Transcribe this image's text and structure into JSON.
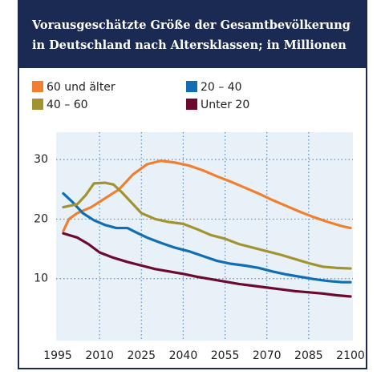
{
  "chart_data": {
    "type": "line",
    "title": [
      "Vorausgeschätzte Größe der Gesamtbevölkerung",
      "in Deutschland nach Altersklassen; in Millionen"
    ],
    "xlim": [
      1995,
      2100
    ],
    "xticks": [
      1995,
      2010,
      2025,
      2040,
      2055,
      2070,
      2085,
      2100
    ],
    "ylim": [
      0,
      35
    ],
    "yticks": [
      10,
      20,
      30
    ],
    "grid": true,
    "series": [
      {
        "name": "60 und älter",
        "color": "#f07f2f",
        "x": [
          1997,
          1999,
          2002,
          2007,
          2012,
          2017,
          2022,
          2027,
          2032,
          2037,
          2042,
          2047,
          2052,
          2057,
          2062,
          2067,
          2072,
          2077,
          2082,
          2087,
          2092,
          2097,
          2100
        ],
        "values": [
          18,
          20,
          21,
          22,
          23.5,
          25,
          27.5,
          29.2,
          29.8,
          29.5,
          29,
          28.2,
          27.2,
          26.3,
          25.3,
          24.3,
          23.2,
          22.2,
          21.2,
          20.3,
          19.5,
          18.8,
          18.5
        ]
      },
      {
        "name": "20 – 40",
        "color": "#0f6eb4",
        "x": [
          1997,
          2000,
          2004,
          2008,
          2012,
          2016,
          2020,
          2023,
          2027,
          2032,
          2037,
          2042,
          2047,
          2052,
          2057,
          2062,
          2067,
          2072,
          2077,
          2082,
          2087,
          2092,
          2097,
          2100
        ],
        "values": [
          24.3,
          23,
          21,
          19.8,
          19,
          18.5,
          18.5,
          17.8,
          16.9,
          16,
          15.2,
          14.6,
          13.8,
          13,
          12.5,
          12.2,
          11.8,
          11.2,
          10.7,
          10.3,
          9.9,
          9.6,
          9.4,
          9.4
        ]
      },
      {
        "name": "40 – 60",
        "color": "#a39330",
        "x": [
          1997,
          2002,
          2005,
          2008,
          2012,
          2015,
          2018,
          2022,
          2025,
          2030,
          2035,
          2040,
          2045,
          2050,
          2055,
          2060,
          2065,
          2070,
          2075,
          2080,
          2085,
          2090,
          2095,
          2100
        ],
        "values": [
          22,
          22.5,
          24,
          26,
          26.1,
          25.8,
          24.5,
          22.5,
          21,
          20,
          19.5,
          19.2,
          18.3,
          17.3,
          16.7,
          15.8,
          15.2,
          14.6,
          14,
          13.3,
          12.6,
          12,
          11.8,
          11.7
        ]
      },
      {
        "name": "Unter 20",
        "color": "#6b0a2e",
        "x": [
          1997,
          2002,
          2006,
          2010,
          2015,
          2020,
          2025,
          2030,
          2035,
          2040,
          2045,
          2050,
          2055,
          2060,
          2065,
          2070,
          2075,
          2080,
          2085,
          2090,
          2095,
          2100
        ],
        "values": [
          17.6,
          16.9,
          15.8,
          14.4,
          13.5,
          12.8,
          12.2,
          11.6,
          11.2,
          10.8,
          10.3,
          9.9,
          9.5,
          9.1,
          8.8,
          8.5,
          8.2,
          7.9,
          7.7,
          7.5,
          7.2,
          7.0
        ]
      }
    ]
  }
}
